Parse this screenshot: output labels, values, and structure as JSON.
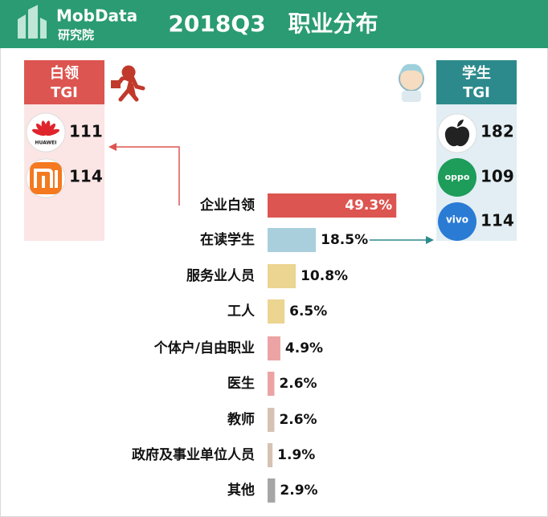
{
  "header": {
    "logo_text": "MobData",
    "logo_sub": "研究院",
    "title": "2018Q3　职业分布"
  },
  "white_collar": {
    "title": "白领",
    "subtitle": "TGI",
    "brands": [
      {
        "logo_text": "HUAWEI",
        "tgi": 111
      },
      {
        "tgi": 114
      }
    ]
  },
  "student": {
    "title": "学生",
    "subtitle": "TGI",
    "brands": [
      {
        "tgi": 182
      },
      {
        "logo_text": "oppo",
        "tgi": 109
      },
      {
        "logo_text": "vivo",
        "tgi": 114
      }
    ]
  },
  "chart_data": {
    "type": "bar",
    "categories": [
      "企业白领",
      "在读学生",
      "服务业人员",
      "工人",
      "个体户/自由职业",
      "医生",
      "教师",
      "政府及事业单位人员",
      "其他"
    ],
    "values": [
      49.3,
      18.5,
      10.8,
      6.5,
      4.9,
      2.6,
      2.6,
      1.9,
      2.9
    ],
    "value_labels": [
      "49.3%",
      "18.5%",
      "10.8%",
      "6.5%",
      "4.9%",
      "2.6%",
      "2.6%",
      "1.9%",
      "2.9%"
    ],
    "colors": [
      "#dd5550",
      "#a9cfdd",
      "#ecd491",
      "#ecd491",
      "#eba3a3",
      "#eba3a3",
      "#d6c2b4",
      "#d6c2b4",
      "#a6a6a6"
    ]
  }
}
